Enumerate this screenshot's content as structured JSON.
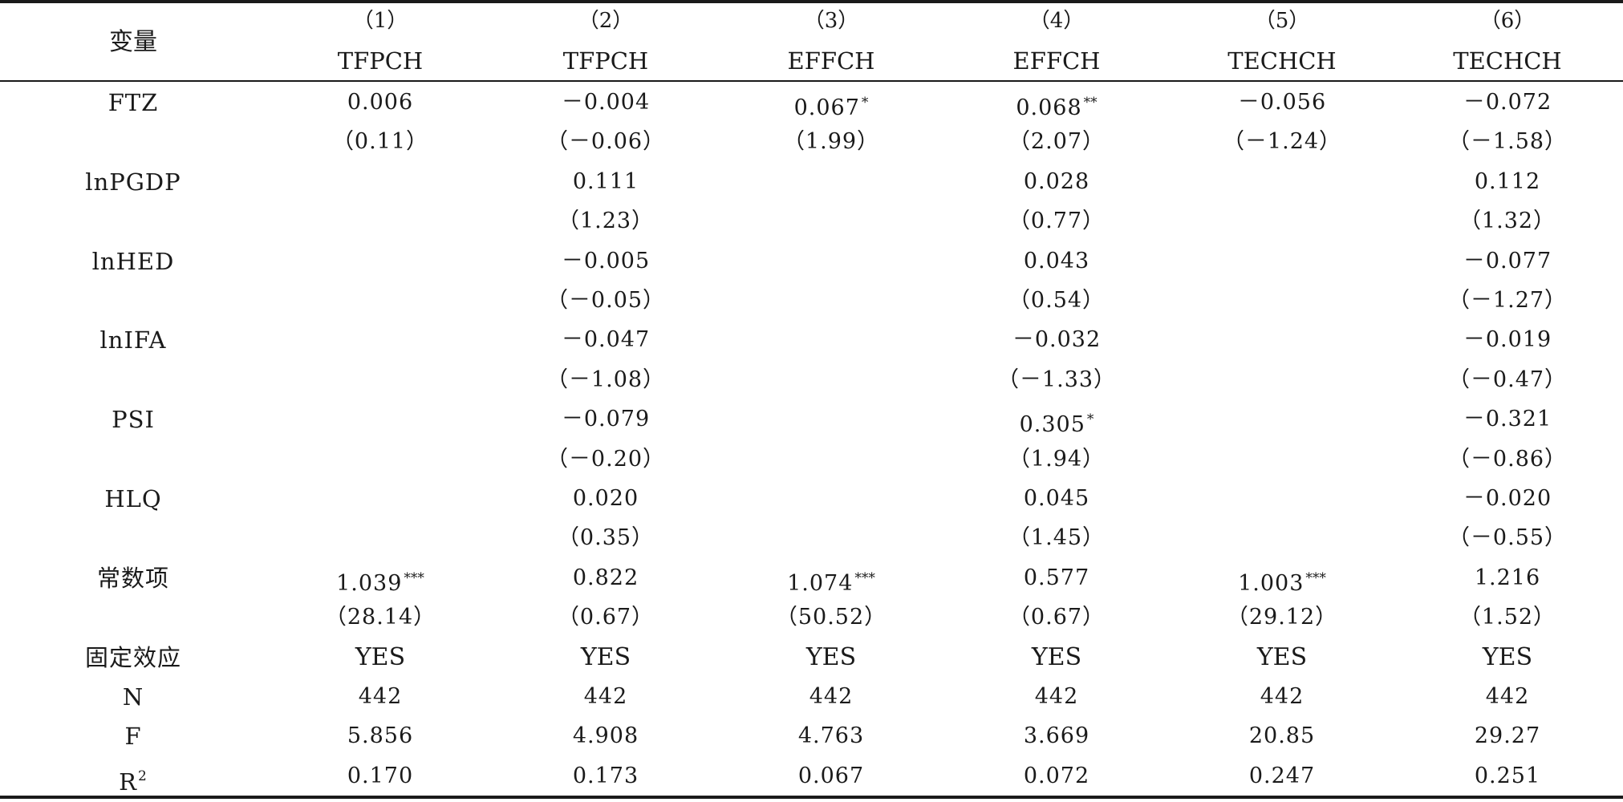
{
  "header": {
    "variable_label": "变量",
    "columns": [
      {
        "number": "（1）",
        "name": "TFPCH"
      },
      {
        "number": "（2）",
        "name": "TFPCH"
      },
      {
        "number": "（3）",
        "name": "EFFCH"
      },
      {
        "number": "（4）",
        "name": "EFFCH"
      },
      {
        "number": "（5）",
        "name": "TECHCH"
      },
      {
        "number": "（6）",
        "name": "TECHCH"
      }
    ]
  },
  "rows": [
    {
      "label": "FTZ",
      "values": [
        {
          "v": "0.006",
          "stars": ""
        },
        {
          "v": "－0.004",
          "stars": ""
        },
        {
          "v": "0.067",
          "stars": "*"
        },
        {
          "v": "0.068",
          "stars": "**"
        },
        {
          "v": "－0.056",
          "stars": ""
        },
        {
          "v": "－0.072",
          "stars": ""
        }
      ]
    },
    {
      "label": "",
      "values": [
        {
          "v": "（0.11）",
          "stars": ""
        },
        {
          "v": "（－0.06）",
          "stars": ""
        },
        {
          "v": "（1.99）",
          "stars": ""
        },
        {
          "v": "（2.07）",
          "stars": ""
        },
        {
          "v": "（－1.24）",
          "stars": ""
        },
        {
          "v": "（－1.58）",
          "stars": ""
        }
      ]
    },
    {
      "label": "lnPGDP",
      "values": [
        {
          "v": "",
          "stars": ""
        },
        {
          "v": "0.111",
          "stars": ""
        },
        {
          "v": "",
          "stars": ""
        },
        {
          "v": "0.028",
          "stars": ""
        },
        {
          "v": "",
          "stars": ""
        },
        {
          "v": "0.112",
          "stars": ""
        }
      ]
    },
    {
      "label": "",
      "values": [
        {
          "v": "",
          "stars": ""
        },
        {
          "v": "（1.23）",
          "stars": ""
        },
        {
          "v": "",
          "stars": ""
        },
        {
          "v": "（0.77）",
          "stars": ""
        },
        {
          "v": "",
          "stars": ""
        },
        {
          "v": "（1.32）",
          "stars": ""
        }
      ]
    },
    {
      "label": "lnHED",
      "values": [
        {
          "v": "",
          "stars": ""
        },
        {
          "v": "－0.005",
          "stars": ""
        },
        {
          "v": "",
          "stars": ""
        },
        {
          "v": "0.043",
          "stars": ""
        },
        {
          "v": "",
          "stars": ""
        },
        {
          "v": "－0.077",
          "stars": ""
        }
      ]
    },
    {
      "label": "",
      "values": [
        {
          "v": "",
          "stars": ""
        },
        {
          "v": "（－0.05）",
          "stars": ""
        },
        {
          "v": "",
          "stars": ""
        },
        {
          "v": "（0.54）",
          "stars": ""
        },
        {
          "v": "",
          "stars": ""
        },
        {
          "v": "（－1.27）",
          "stars": ""
        }
      ]
    },
    {
      "label": "lnIFA",
      "values": [
        {
          "v": "",
          "stars": ""
        },
        {
          "v": "－0.047",
          "stars": ""
        },
        {
          "v": "",
          "stars": ""
        },
        {
          "v": "－0.032",
          "stars": ""
        },
        {
          "v": "",
          "stars": ""
        },
        {
          "v": "－0.019",
          "stars": ""
        }
      ]
    },
    {
      "label": "",
      "values": [
        {
          "v": "",
          "stars": ""
        },
        {
          "v": "（－1.08）",
          "stars": ""
        },
        {
          "v": "",
          "stars": ""
        },
        {
          "v": "（－1.33）",
          "stars": ""
        },
        {
          "v": "",
          "stars": ""
        },
        {
          "v": "（－0.47）",
          "stars": ""
        }
      ]
    },
    {
      "label": "PSI",
      "values": [
        {
          "v": "",
          "stars": ""
        },
        {
          "v": "－0.079",
          "stars": ""
        },
        {
          "v": "",
          "stars": ""
        },
        {
          "v": "0.305",
          "stars": "*"
        },
        {
          "v": "",
          "stars": ""
        },
        {
          "v": "－0.321",
          "stars": ""
        }
      ]
    },
    {
      "label": "",
      "values": [
        {
          "v": "",
          "stars": ""
        },
        {
          "v": "（－0.20）",
          "stars": ""
        },
        {
          "v": "",
          "stars": ""
        },
        {
          "v": "（1.94）",
          "stars": ""
        },
        {
          "v": "",
          "stars": ""
        },
        {
          "v": "（－0.86）",
          "stars": ""
        }
      ]
    },
    {
      "label": "HLQ",
      "values": [
        {
          "v": "",
          "stars": ""
        },
        {
          "v": "0.020",
          "stars": ""
        },
        {
          "v": "",
          "stars": ""
        },
        {
          "v": "0.045",
          "stars": ""
        },
        {
          "v": "",
          "stars": ""
        },
        {
          "v": "－0.020",
          "stars": ""
        }
      ]
    },
    {
      "label": "",
      "values": [
        {
          "v": "",
          "stars": ""
        },
        {
          "v": "（0.35）",
          "stars": ""
        },
        {
          "v": "",
          "stars": ""
        },
        {
          "v": "（1.45）",
          "stars": ""
        },
        {
          "v": "",
          "stars": ""
        },
        {
          "v": "（－0.55）",
          "stars": ""
        }
      ]
    },
    {
      "label": "常数项",
      "values": [
        {
          "v": "1.039",
          "stars": "***"
        },
        {
          "v": "0.822",
          "stars": ""
        },
        {
          "v": "1.074",
          "stars": "***"
        },
        {
          "v": "0.577",
          "stars": ""
        },
        {
          "v": "1.003",
          "stars": "***"
        },
        {
          "v": "1.216",
          "stars": ""
        }
      ]
    },
    {
      "label": "",
      "values": [
        {
          "v": "（28.14）",
          "stars": ""
        },
        {
          "v": "（0.67）",
          "stars": ""
        },
        {
          "v": "（50.52）",
          "stars": ""
        },
        {
          "v": "（0.67）",
          "stars": ""
        },
        {
          "v": "（29.12）",
          "stars": ""
        },
        {
          "v": "（1.52）",
          "stars": ""
        }
      ]
    },
    {
      "label": "固定效应",
      "values": [
        {
          "v": "YES",
          "stars": ""
        },
        {
          "v": "YES",
          "stars": ""
        },
        {
          "v": "YES",
          "stars": ""
        },
        {
          "v": "YES",
          "stars": ""
        },
        {
          "v": "YES",
          "stars": ""
        },
        {
          "v": "YES",
          "stars": ""
        }
      ]
    },
    {
      "label": "N",
      "values": [
        {
          "v": "442",
          "stars": ""
        },
        {
          "v": "442",
          "stars": ""
        },
        {
          "v": "442",
          "stars": ""
        },
        {
          "v": "442",
          "stars": ""
        },
        {
          "v": "442",
          "stars": ""
        },
        {
          "v": "442",
          "stars": ""
        }
      ]
    },
    {
      "label": "F",
      "values": [
        {
          "v": "5.856",
          "stars": ""
        },
        {
          "v": "4.908",
          "stars": ""
        },
        {
          "v": "4.763",
          "stars": ""
        },
        {
          "v": "3.669",
          "stars": ""
        },
        {
          "v": "20.85",
          "stars": ""
        },
        {
          "v": "29.27",
          "stars": ""
        }
      ]
    },
    {
      "label": "R",
      "label_sup": "2",
      "values": [
        {
          "v": "0.170",
          "stars": ""
        },
        {
          "v": "0.173",
          "stars": ""
        },
        {
          "v": "0.067",
          "stars": ""
        },
        {
          "v": "0.072",
          "stars": ""
        },
        {
          "v": "0.247",
          "stars": ""
        },
        {
          "v": "0.251",
          "stars": ""
        }
      ]
    }
  ]
}
